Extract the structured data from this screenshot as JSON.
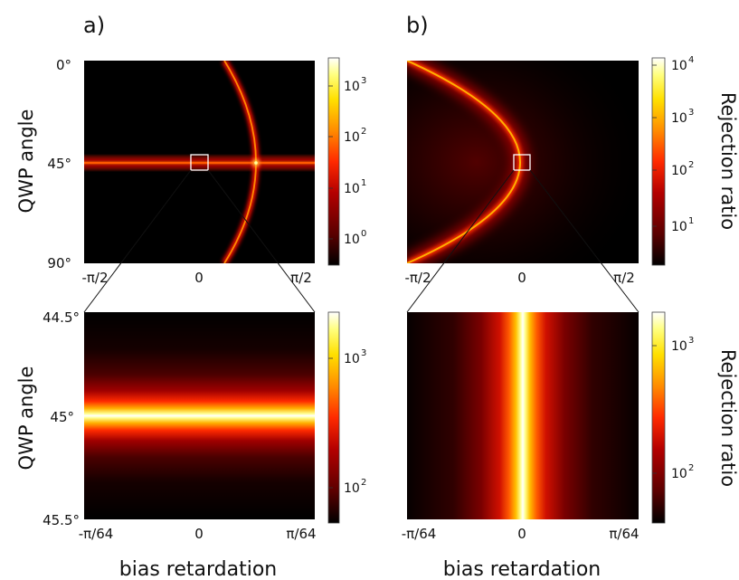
{
  "panel_letters": [
    "a)",
    "b)"
  ],
  "chart_data": [
    {
      "type": "heatmap",
      "panel": "a)",
      "xticks": [
        "-π/2",
        "0",
        "π/2"
      ],
      "yticks": [
        "0°",
        "45°",
        "90°"
      ],
      "ylabel": "QWP angle",
      "xlabel": "",
      "colorbar_label": "",
      "colorbar_scale": "log",
      "colorbar_ticks": [
        "10",
        "10",
        "10",
        "10"
      ],
      "colorbar_exponents": [
        "0",
        "1",
        "2",
        "3"
      ],
      "colorbar_values": [
        1,
        10,
        100,
        1000
      ],
      "colorbar_range": [
        0.2,
        3000
      ],
      "zoom_box": true
    },
    {
      "type": "heatmap",
      "panel": "b)",
      "xticks": [
        "-π/2",
        "0",
        "π/2"
      ],
      "yticks": [],
      "ylabel": "",
      "xlabel": "",
      "colorbar_label": "Rejection ratio",
      "colorbar_scale": "log",
      "colorbar_ticks": [
        "10",
        "10",
        "10",
        "10"
      ],
      "colorbar_exponents": [
        "1",
        "2",
        "3",
        "4"
      ],
      "colorbar_values": [
        10,
        100,
        1000,
        10000
      ],
      "colorbar_range": [
        1.5,
        20000
      ],
      "zoom_box": true
    },
    {
      "type": "heatmap",
      "panel": "a) zoom",
      "xticks": [
        "-π/64",
        "0",
        "π/64"
      ],
      "yticks": [
        "44.5°",
        "45°",
        "45.5°"
      ],
      "ylabel": "QWP angle",
      "xlabel": "bias retardation",
      "colorbar_label": "",
      "colorbar_scale": "log",
      "colorbar_ticks": [
        "10",
        "10"
      ],
      "colorbar_exponents": [
        "2",
        "3"
      ],
      "colorbar_values": [
        100,
        1000
      ],
      "colorbar_range": [
        45,
        3500
      ],
      "zoom_box": false
    },
    {
      "type": "heatmap",
      "panel": "b) zoom",
      "xticks": [
        "-π/64",
        "0",
        "π/64"
      ],
      "yticks": [],
      "ylabel": "",
      "xlabel": "bias retardation",
      "colorbar_label": "Rejection ratio",
      "colorbar_scale": "log",
      "colorbar_ticks": [
        "10",
        "10"
      ],
      "colorbar_exponents": [
        "2",
        "3"
      ],
      "colorbar_values": [
        100,
        1000
      ],
      "colorbar_range": [
        45,
        2200
      ],
      "zoom_box": false
    }
  ],
  "colormap": [
    "#000000",
    "#5a0000",
    "#b40000",
    "#ff2a00",
    "#ff8c00",
    "#ffe000",
    "#ffff80",
    "#ffffff"
  ]
}
